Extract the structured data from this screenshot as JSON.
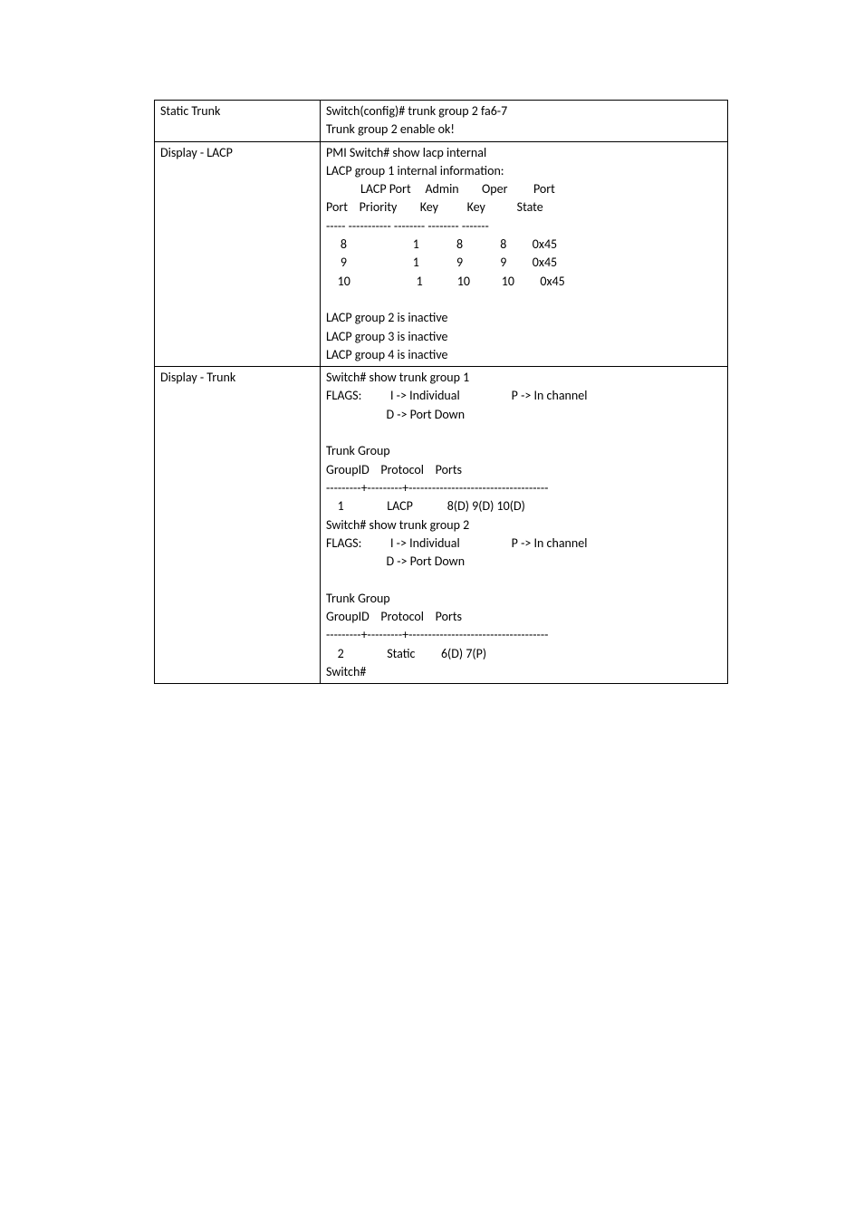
{
  "rows": [
    {
      "label": "Static Trunk",
      "content": "Switch(config)# trunk group 2 fa6-7\nTrunk group 2 enable ok!"
    },
    {
      "label": "Display - LACP",
      "content": "PMI Switch# show lacp internal\nLACP group 1 internal information:\n            LACP Port     Admin        Oper         Port\nPort    Priority        Key          Key           State\n----- ----------- -------- -------- -------\n     8                       1             8             8         0x45\n     9                       1             9             9         0x45\n    10                       1            10           10         0x45\n\nLACP group 2 is inactive\nLACP group 3 is inactive\nLACP group 4 is inactive"
    },
    {
      "label": "Display - Trunk",
      "content": "Switch# show trunk group 1\nFLAGS:          I -> Individual                  P -> In channel\n                     D -> Port Down\n\nTrunk Group\nGroupID    Protocol    Ports\n---------+---------+------------------------------------\n    1               LACP            8(D) 9(D) 10(D)\nSwitch# show trunk group 2\nFLAGS:          I -> Individual                  P -> In channel\n                     D -> Port Down\n\nTrunk Group\nGroupID    Protocol    Ports\n---------+---------+------------------------------------\n    2               Static         6(D) 7(P)\nSwitch#"
    }
  ]
}
